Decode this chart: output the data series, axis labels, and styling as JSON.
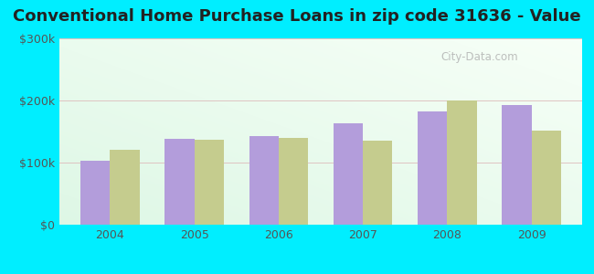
{
  "title": "Conventional Home Purchase Loans in zip code 31636 - Value",
  "years": [
    2004,
    2005,
    2006,
    2007,
    2008,
    2009
  ],
  "hmda_values": [
    103000,
    138000,
    143000,
    163000,
    182000,
    192000
  ],
  "pmic_values": [
    120000,
    137000,
    140000,
    135000,
    200000,
    152000
  ],
  "hmda_color": "#b39ddb",
  "pmic_color": "#c5cc8e",
  "bar_width": 0.35,
  "ylim": [
    0,
    300000
  ],
  "yticks": [
    0,
    100000,
    200000,
    300000
  ],
  "ytick_labels": [
    "$0",
    "$100k",
    "$200k",
    "$300k"
  ],
  "title_fontsize": 13,
  "tick_fontsize": 9,
  "legend_fontsize": 10,
  "outer_bg": "#00eeff",
  "watermark_text": "City-Data.com"
}
